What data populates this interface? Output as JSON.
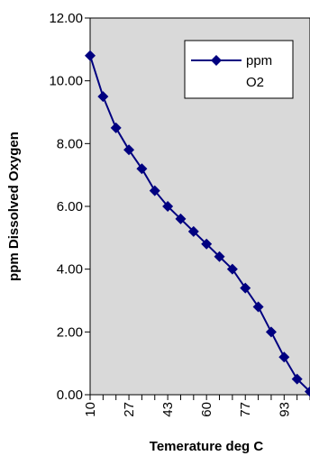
{
  "chart_data": {
    "type": "line",
    "title": "",
    "xlabel": "Temerature deg C",
    "ylabel": "ppm Dissolved Oxygen",
    "x": [
      10,
      16,
      21,
      27,
      32,
      38,
      43,
      49,
      54,
      60,
      65,
      71,
      77,
      82,
      88,
      93,
      99,
      104
    ],
    "x_tick_labels": [
      "10",
      "27",
      "43",
      "60",
      "77",
      "93"
    ],
    "y_tick_labels": [
      "0.00",
      "2.00",
      "4.00",
      "6.00",
      "8.00",
      "10.00",
      "12.00"
    ],
    "ylim": [
      0,
      12
    ],
    "grid": false,
    "legend_position": "top-right",
    "plot_background": "#d9d9d9",
    "series": [
      {
        "name": "ppm O2",
        "color": "#000080",
        "marker": "diamond",
        "values": [
          10.8,
          9.5,
          8.5,
          7.8,
          7.2,
          6.5,
          6.0,
          5.6,
          5.2,
          4.8,
          4.4,
          4.0,
          3.4,
          2.8,
          2.0,
          1.2,
          0.5,
          0.1
        ]
      }
    ],
    "legend_lines": [
      "ppm",
      "O2"
    ]
  }
}
